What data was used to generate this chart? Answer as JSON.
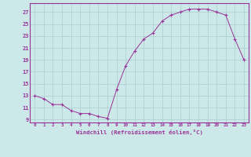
{
  "x": [
    0,
    1,
    2,
    3,
    4,
    5,
    6,
    7,
    8,
    9,
    10,
    11,
    12,
    13,
    14,
    15,
    16,
    17,
    18,
    19,
    20,
    21,
    22,
    23
  ],
  "y": [
    13,
    12.5,
    11.5,
    11.5,
    10.5,
    10,
    10,
    9.5,
    9.2,
    14,
    18,
    20.5,
    22.5,
    23.5,
    25.5,
    26.5,
    27,
    27.5,
    27.5,
    27.5,
    27,
    26.5,
    22.5,
    19
  ],
  "line_color": "#993399",
  "marker": "+",
  "marker_color": "#993399",
  "bg_color": "#cce8e8",
  "grid_color": "#aacece",
  "xlabel": "Windchill (Refroidissement éolien,°C)",
  "xtick_labels": [
    "0",
    "1",
    "2",
    "3",
    "4",
    "5",
    "6",
    "7",
    "8",
    "9",
    "10",
    "11",
    "12",
    "13",
    "14",
    "15",
    "16",
    "17",
    "18",
    "19",
    "20",
    "21",
    "22",
    "23"
  ],
  "ytick_labels": [
    "9",
    "11",
    "13",
    "15",
    "17",
    "19",
    "21",
    "23",
    "25",
    "27"
  ],
  "ytick_values": [
    9,
    11,
    13,
    15,
    17,
    19,
    21,
    23,
    25,
    27
  ],
  "ylim": [
    8.5,
    28.5
  ],
  "xlim": [
    -0.5,
    23.5
  ],
  "tick_color": "#993399",
  "label_color": "#993399",
  "spine_color": "#993399"
}
